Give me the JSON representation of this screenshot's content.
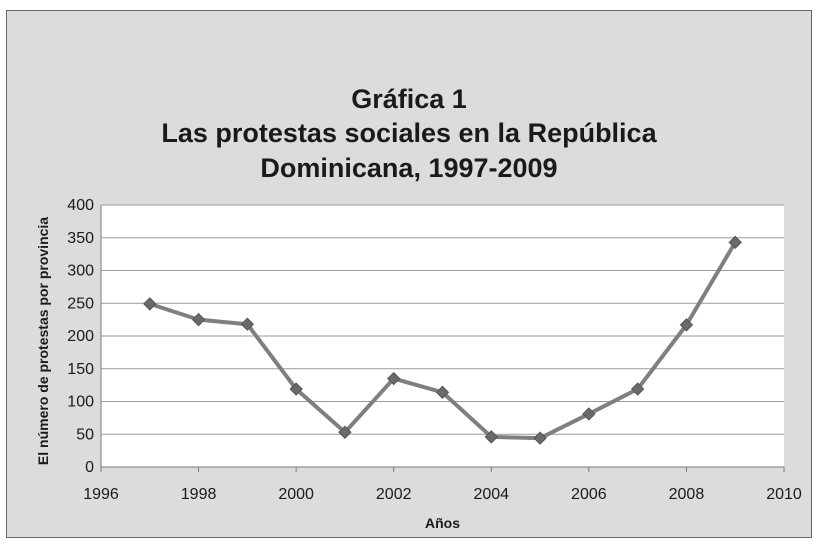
{
  "chart_data": {
    "type": "line",
    "title_lines": [
      "Gráfica 1",
      "Las protestas sociales en la República",
      "Dominicana, 1997-2009"
    ],
    "xlabel": "Años",
    "ylabel": "El número de protestas por provincia",
    "xlim": [
      1996,
      2010
    ],
    "ylim": [
      0,
      400
    ],
    "x_ticks": [
      1996,
      1998,
      2000,
      2002,
      2004,
      2006,
      2008,
      2010
    ],
    "y_ticks": [
      0,
      50,
      100,
      150,
      200,
      250,
      300,
      350,
      400
    ],
    "grid": true,
    "series": [
      {
        "color": "#7f7f7f",
        "x": [
          1997,
          1998,
          1999,
          2000,
          2001,
          2002,
          2003,
          2004,
          2005,
          2006,
          2007,
          2008,
          2009
        ],
        "y": [
          249,
          225,
          218,
          119,
          53,
          135,
          114,
          46,
          44,
          81,
          119,
          217,
          343
        ]
      }
    ]
  }
}
